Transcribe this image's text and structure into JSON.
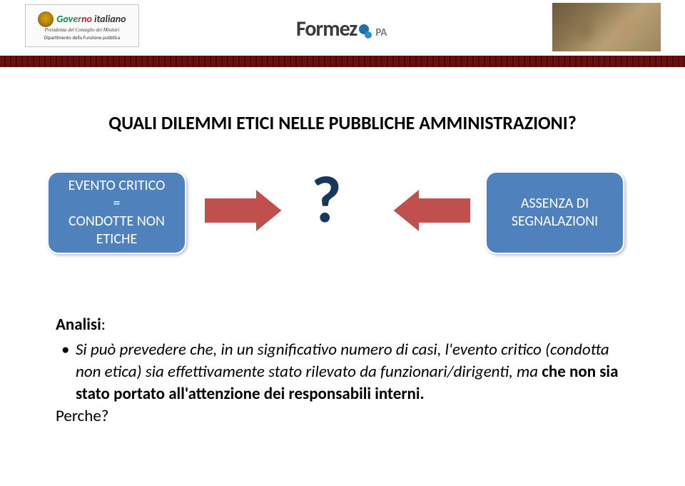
{
  "colors": {
    "box_fill": "#4f81bd",
    "box_border": "#ffffff",
    "qmark": "#17375d",
    "arrow_fill": "#c0504d",
    "arrow_border": "#ffffff",
    "dashed_bar_main": "#6a0f0f",
    "dashed_bar_gap": "#4a0808",
    "title_color": "#000000",
    "text_color": "#000000"
  },
  "header": {
    "gov_logo": {
      "tricolor_text": [
        "Gov",
        "er",
        "no",
        " italiano"
      ],
      "subtitle1": "Presidenza del Consiglio dei Ministri",
      "subtitle2": "Dipartimento della Funzione pubblica"
    },
    "formez": {
      "main": "Formez",
      "suffix": "PA"
    }
  },
  "title": "QUALI DILEMMI ETICI NELLE PUBBLICHE AMMINISTRAZIONI?",
  "diagram": {
    "left_box": "EVENTO CRITICO\n=\nCONDOTTE NON ETICHE",
    "right_box": "ASSENZA DI SEGNALAZIONI",
    "center": "?",
    "box_style": {
      "corner_radius": 16,
      "border_width": 2,
      "font_size": 20
    },
    "arrow_style": {
      "width": 110,
      "height": 62,
      "shaft_half": 18,
      "head_width": 38
    },
    "qmark_style": {
      "font_size": 92,
      "font_weight": "bold"
    }
  },
  "analysis": {
    "heading": "Analisi",
    "bullet_pre": "Si può prevedere che, in un significativo numero di casi, l'evento critico (condotta non etica) sia effettivamente stato rilevato da funzionari/dirigenti, ma ",
    "bullet_bold": "che non sia stato portato all'attenzione dei responsabili interni.",
    "final": "Perche?",
    "font_size": 23
  }
}
